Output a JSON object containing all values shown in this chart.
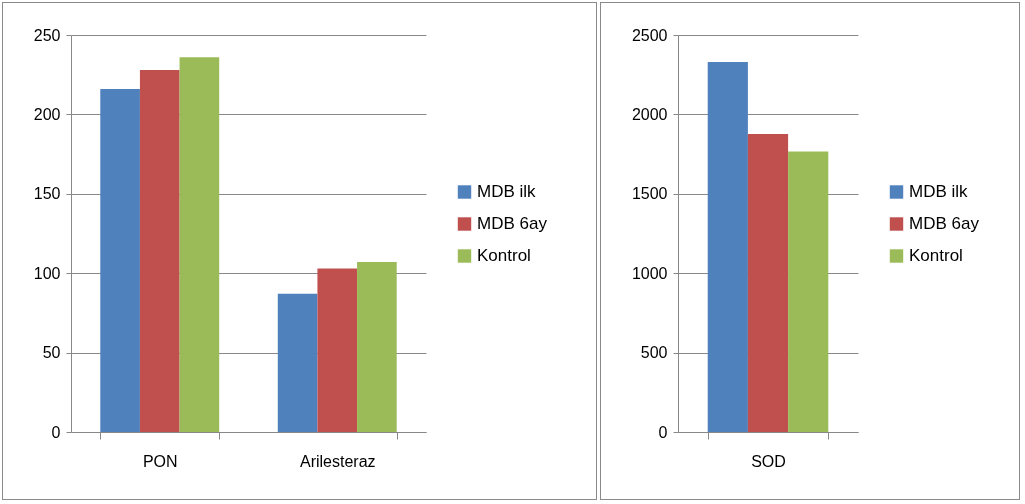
{
  "chart_data": [
    {
      "type": "bar",
      "categories": [
        "PON",
        "Arilesteraz"
      ],
      "series": [
        {
          "name": "MDB ilk",
          "color": "#4f81bd",
          "values": [
            216,
            87
          ]
        },
        {
          "name": "MDB 6ay",
          "color": "#c0504d",
          "values": [
            228,
            103
          ]
        },
        {
          "name": "Kontrol",
          "color": "#9bbb59",
          "values": [
            236,
            107
          ]
        }
      ],
      "ylim": [
        0,
        250
      ],
      "yticks": [
        0,
        50,
        100,
        150,
        200,
        250
      ],
      "grid": "y",
      "legend": "right"
    },
    {
      "type": "bar",
      "categories": [
        "SOD"
      ],
      "series": [
        {
          "name": "MDB ilk",
          "color": "#4f81bd",
          "values": [
            2330
          ]
        },
        {
          "name": "MDB 6ay",
          "color": "#c0504d",
          "values": [
            1876
          ]
        },
        {
          "name": "Kontrol",
          "color": "#9bbb59",
          "values": [
            1766
          ]
        }
      ],
      "ylim": [
        0,
        2500
      ],
      "yticks": [
        0,
        500,
        1000,
        1500,
        2000,
        2500
      ],
      "grid": "y",
      "legend": "right"
    }
  ]
}
